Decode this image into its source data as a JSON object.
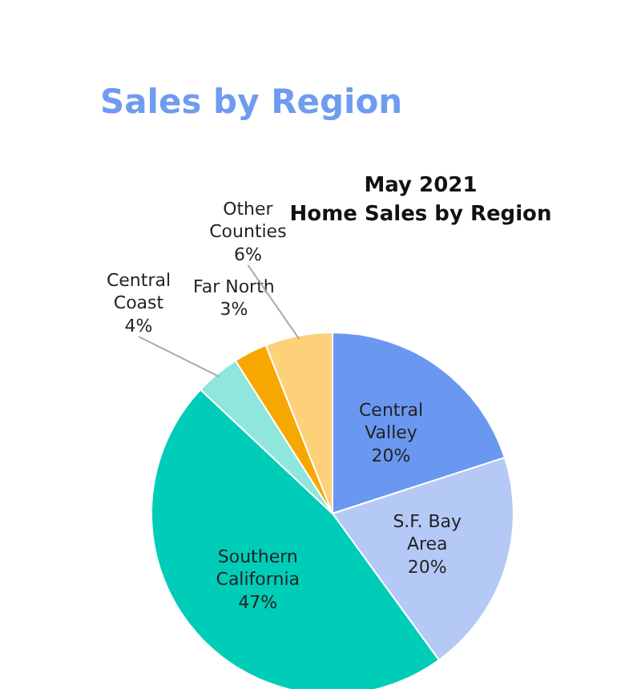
{
  "chart_data": {
    "type": "pie",
    "title": "Sales by Region",
    "subtitle": "May 2021\nHome Sales by Region",
    "categories": [
      "Central Valley",
      "S.F. Bay Area",
      "Southern California",
      "Central Coast",
      "Far North",
      "Other Counties"
    ],
    "values": [
      20,
      20,
      47,
      4,
      3,
      6
    ],
    "value_labels": [
      "20%",
      "20%",
      "47%",
      "4%",
      "3%",
      "6%"
    ],
    "colors": [
      "#6a98f0",
      "#b4c9f5",
      "#00cdb8",
      "#8ee6dc",
      "#f7a800",
      "#fdd07a"
    ]
  }
}
